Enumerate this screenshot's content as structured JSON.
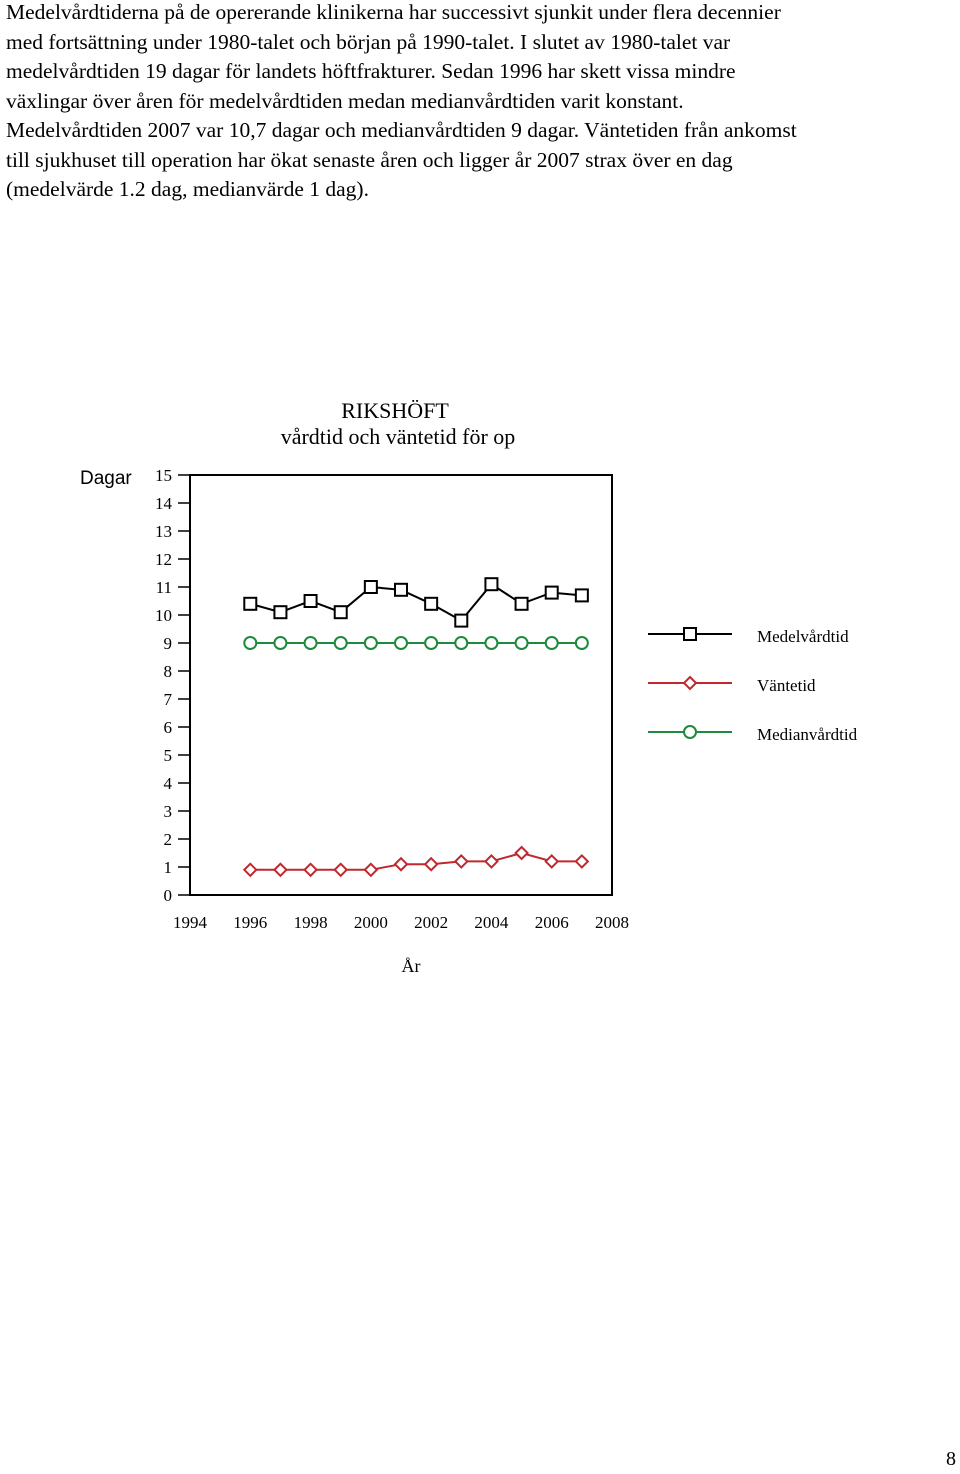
{
  "text": {
    "paragraph_lines": [
      "Medelvårdtiderna på de opererande klinikerna har successivt sjunkit under flera decennier",
      "med fortsättning under 1980-talet och början på 1990-talet. I slutet av 1980-talet var",
      "medelvårdtiden 19 dagar för landets höftfrakturer.  Sedan 1996 har skett vissa mindre",
      "växlingar över åren för medelvårdtiden medan medianvårdtiden varit konstant.",
      "Medelvårdtiden 2007 var 10,7 dagar och medianvårdtiden 9 dagar. Väntetiden från ankomst",
      "till sjukhuset till operation har ökat senaste åren och ligger år 2007 strax över en dag",
      "(medelvärde 1.2 dag, medianvärde 1 dag)."
    ],
    "page_number": "8"
  },
  "chart_data": {
    "type": "line",
    "title": "RIKSHÖFT",
    "subtitle": "vårdtid och väntetid för op",
    "ylabel": "Dagar",
    "xlabel": "År",
    "xlim": [
      1994,
      2008
    ],
    "ylim": [
      0,
      15
    ],
    "x_ticks": [
      1994,
      1996,
      1998,
      2000,
      2002,
      2004,
      2006,
      2008
    ],
    "y_ticks": [
      0,
      1,
      2,
      3,
      4,
      5,
      6,
      7,
      8,
      9,
      10,
      11,
      12,
      13,
      14,
      15
    ],
    "legend_position": "right",
    "x": [
      1996,
      1997,
      1998,
      1999,
      2000,
      2001,
      2002,
      2003,
      2004,
      2005,
      2006,
      2007
    ],
    "series": [
      {
        "name": "Medelvårdtid",
        "color": "#000000",
        "marker": "square",
        "values": [
          10.4,
          10.1,
          10.5,
          10.1,
          11.0,
          10.9,
          10.4,
          9.8,
          11.1,
          10.4,
          10.8,
          10.7
        ]
      },
      {
        "name": "Väntetid",
        "color": "#c0282d",
        "marker": "diamond",
        "values": [
          0.9,
          0.9,
          0.9,
          0.9,
          0.9,
          1.1,
          1.1,
          1.2,
          1.2,
          1.5,
          1.2,
          1.2
        ]
      },
      {
        "name": "Medianvårdtid",
        "color": "#1e8a3c",
        "marker": "circle",
        "values": [
          9,
          9,
          9,
          9,
          9,
          9,
          9,
          9,
          9,
          9,
          9,
          9
        ]
      }
    ]
  }
}
